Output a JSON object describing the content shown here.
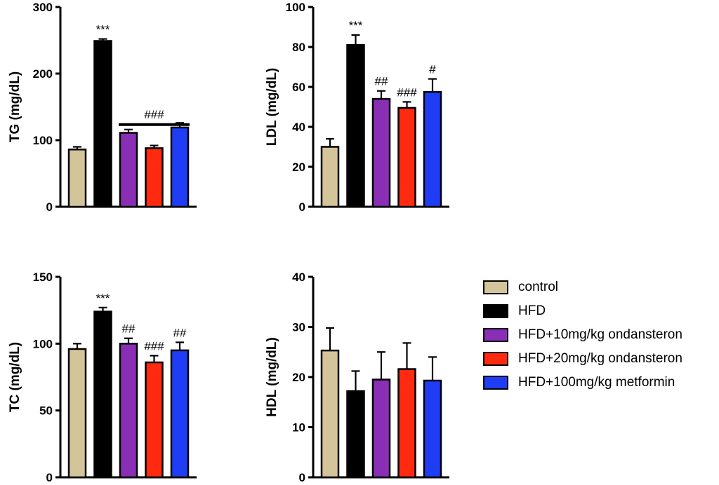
{
  "series_colors": [
    "#d4c49a",
    "#000000",
    "#8a2fb5",
    "#ff2a10",
    "#1f3df5"
  ],
  "legend": [
    {
      "label": "control",
      "color": "#d4c49a"
    },
    {
      "label": "HFD",
      "color": "#000000"
    },
    {
      "label": "HFD+10mg/kg ondansteron",
      "color": "#8a2fb5"
    },
    {
      "label": "HFD+20mg/kg ondansteron",
      "color": "#ff2a10"
    },
    {
      "label": "HFD+100mg/kg metformin",
      "color": "#1f3df5"
    }
  ],
  "chart_data": [
    {
      "type": "bar",
      "id": "tg",
      "ylabel": "TG (mg/dL)",
      "ylim": [
        0,
        300
      ],
      "yticks": [
        0,
        100,
        200,
        300
      ],
      "categories": [
        "control",
        "HFD",
        "HFD+10mg/kg ondansteron",
        "HFD+20mg/kg ondansteron",
        "HFD+100mg/kg metformin"
      ],
      "values": [
        86,
        249,
        111,
        88,
        119
      ],
      "errors": [
        4,
        3,
        5,
        4,
        7
      ],
      "annotations": [
        "",
        "***",
        "",
        "",
        ""
      ],
      "bracket": {
        "from": 2,
        "to": 4,
        "label": "###",
        "value": 135
      }
    },
    {
      "type": "bar",
      "id": "ldl",
      "ylabel": "LDL (mg/dL)",
      "ylim": [
        0,
        100
      ],
      "yticks": [
        0,
        20,
        40,
        60,
        80,
        100
      ],
      "categories": [
        "control",
        "HFD",
        "HFD+10mg/kg ondansteron",
        "HFD+20mg/kg ondansteron",
        "HFD+100mg/kg metformin"
      ],
      "values": [
        30,
        81,
        54,
        49.5,
        57.5
      ],
      "errors": [
        4,
        5,
        4,
        3,
        6.5
      ],
      "annotations": [
        "",
        "***",
        "##",
        "###",
        "#"
      ]
    },
    {
      "type": "bar",
      "id": "tc",
      "ylabel": "TC (mg/dL)",
      "ylim": [
        0,
        150
      ],
      "yticks": [
        0,
        50,
        100,
        150
      ],
      "categories": [
        "control",
        "HFD",
        "HFD+10mg/kg ondansteron",
        "HFD+20mg/kg ondansteron",
        "HFD+100mg/kg metformin"
      ],
      "values": [
        96,
        124,
        100,
        86,
        95
      ],
      "errors": [
        4,
        3,
        4,
        5,
        6
      ],
      "annotations": [
        "",
        "***",
        "##",
        "###",
        "##"
      ]
    },
    {
      "type": "bar",
      "id": "hdl",
      "ylabel": "HDL (mg/dL)",
      "ylim": [
        0,
        40
      ],
      "yticks": [
        0,
        10,
        20,
        30,
        40
      ],
      "categories": [
        "control",
        "HFD",
        "HFD+10mg/kg ondansteron",
        "HFD+20mg/kg ondansteron",
        "HFD+100mg/kg metformin"
      ],
      "values": [
        25.3,
        17.2,
        19.5,
        21.6,
        19.3
      ],
      "errors": [
        4.5,
        4,
        5.5,
        5.2,
        4.7
      ],
      "annotations": [
        "",
        "",
        "",
        "",
        ""
      ]
    }
  ]
}
